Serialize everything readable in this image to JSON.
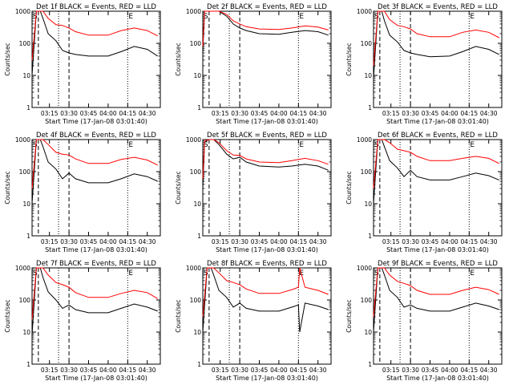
{
  "chart_data": [
    {
      "type": "line",
      "title": "Det 1f BLACK = Events, RED = LLD",
      "xlabel": "Start Time (17-Jan-08 03:01:40)",
      "ylabel": "Counts/sec",
      "x_ticks": [
        "03:15",
        "03:30",
        "03:45",
        "04:00",
        "04:15",
        "04:30"
      ],
      "y_ticks": [
        "1",
        "10",
        "100",
        "1000"
      ],
      "ylim": [
        1,
        1000
      ],
      "yscale": "log",
      "markers": {
        "S": "03:01:40",
        "E": "04:15"
      },
      "series": [
        {
          "color": "#000000",
          "x": [
            "03:01:40",
            "03:05",
            "03:08",
            "03:10",
            "03:14",
            "03:20",
            "03:25",
            "03:30",
            "03:35",
            "03:45",
            "04:00",
            "04:10",
            "04:20",
            "04:30",
            "04:38"
          ],
          "y": [
            10,
            1000,
            1000,
            600,
            200,
            120,
            60,
            50,
            45,
            40,
            40,
            55,
            80,
            65,
            40
          ]
        },
        {
          "color": "#ff0000",
          "x": [
            "03:01:40",
            "03:05",
            "03:08",
            "03:10",
            "03:14",
            "03:20",
            "03:25",
            "03:30",
            "03:35",
            "03:45",
            "04:00",
            "04:10",
            "04:20",
            "04:30",
            "04:38"
          ],
          "y": [
            30,
            1000,
            1000,
            1000,
            600,
            380,
            360,
            300,
            230,
            180,
            180,
            250,
            300,
            250,
            170
          ]
        }
      ]
    },
    {
      "type": "line",
      "title": "Det 2f BLACK = Events, RED = LLD",
      "xlabel": "Start Time (17-Jan-08 03:01:40)",
      "ylabel": "Counts/sec",
      "x_ticks": [
        "03:15",
        "03:30",
        "03:45",
        "04:00",
        "04:15",
        "04:30"
      ],
      "y_ticks": [
        "1",
        "10",
        "100",
        "1000"
      ],
      "ylim": [
        1,
        1000
      ],
      "yscale": "log",
      "markers": {
        "S": "03:01:40",
        "E": "04:15"
      },
      "series": [
        {
          "color": "#000000",
          "x": [
            "03:01:40",
            "03:03",
            "03:06",
            "03:10",
            "03:14",
            "03:20",
            "03:25",
            "03:30",
            "03:35",
            "03:45",
            "04:00",
            "04:10",
            "04:20",
            "04:30",
            "04:38"
          ],
          "y": [
            50,
            1000,
            1000,
            1000,
            1000,
            700,
            400,
            300,
            250,
            200,
            190,
            220,
            250,
            230,
            180
          ]
        },
        {
          "color": "#ff0000",
          "x": [
            "03:01:40",
            "03:03",
            "03:06",
            "03:10",
            "03:14",
            "03:20",
            "03:25",
            "03:30",
            "03:35",
            "03:45",
            "04:00",
            "04:10",
            "04:20",
            "04:30",
            "04:38"
          ],
          "y": [
            80,
            1000,
            1000,
            1000,
            1000,
            800,
            500,
            400,
            330,
            280,
            270,
            300,
            350,
            320,
            260
          ]
        }
      ]
    },
    {
      "type": "line",
      "title": "Det 3f BLACK = Events, RED = LLD",
      "xlabel": "Start Time (17-Jan-08 03:01:40)",
      "ylabel": "Counts/sec",
      "x_ticks": [
        "03:15",
        "03:30",
        "03:45",
        "04:00",
        "04:15",
        "04:30"
      ],
      "y_ticks": [
        "1",
        "10",
        "100",
        "1000"
      ],
      "ylim": [
        1,
        1000
      ],
      "yscale": "log",
      "markers": {
        "S": "03:01:40",
        "E": "04:15"
      },
      "series": [
        {
          "color": "#000000",
          "x": [
            "03:01:40",
            "03:05",
            "03:08",
            "03:10",
            "03:14",
            "03:20",
            "03:25",
            "03:30",
            "03:35",
            "03:45",
            "04:00",
            "04:10",
            "04:20",
            "04:30",
            "04:38"
          ],
          "y": [
            8,
            1000,
            1000,
            500,
            180,
            110,
            60,
            50,
            45,
            38,
            40,
            55,
            80,
            65,
            45
          ]
        },
        {
          "color": "#ff0000",
          "x": [
            "03:01:40",
            "03:05",
            "03:08",
            "03:10",
            "03:14",
            "03:20",
            "03:25",
            "03:30",
            "03:35",
            "03:45",
            "04:00",
            "04:10",
            "04:20",
            "04:30",
            "04:38"
          ],
          "y": [
            20,
            1000,
            1000,
            1000,
            550,
            360,
            330,
            280,
            200,
            160,
            160,
            220,
            260,
            220,
            150
          ]
        }
      ]
    },
    {
      "type": "line",
      "title": "Det 4f BLACK = Events, RED = LLD",
      "xlabel": "Start Time (17-Jan-08 03:01:40)",
      "ylabel": "Counts/sec",
      "x_ticks": [
        "03:15",
        "03:30",
        "03:45",
        "04:00",
        "04:15",
        "04:30"
      ],
      "y_ticks": [
        "1",
        "10",
        "100",
        "1000"
      ],
      "ylim": [
        1,
        1000
      ],
      "yscale": "log",
      "markers": {
        "S": "03:01:40",
        "E": "04:15"
      },
      "series": [
        {
          "color": "#000000",
          "x": [
            "03:01:40",
            "03:05",
            "03:08",
            "03:10",
            "03:14",
            "03:20",
            "03:25",
            "03:30",
            "03:35",
            "03:45",
            "04:00",
            "04:10",
            "04:20",
            "04:30",
            "04:38"
          ],
          "y": [
            10,
            1000,
            1000,
            600,
            200,
            120,
            60,
            90,
            60,
            45,
            45,
            60,
            85,
            70,
            50
          ]
        },
        {
          "color": "#ff0000",
          "x": [
            "03:01:40",
            "03:05",
            "03:08",
            "03:10",
            "03:14",
            "03:20",
            "03:25",
            "03:30",
            "03:35",
            "03:45",
            "04:00",
            "04:10",
            "04:20",
            "04:30",
            "04:38"
          ],
          "y": [
            30,
            1000,
            1000,
            1000,
            700,
            400,
            350,
            330,
            250,
            180,
            180,
            240,
            280,
            230,
            160
          ]
        }
      ]
    },
    {
      "type": "line",
      "title": "Det 5f BLACK = Events, RED = LLD",
      "xlabel": "Start Time (17-Jan-08 03:01:40)",
      "ylabel": "Counts/sec",
      "x_ticks": [
        "03:15",
        "03:30",
        "03:45",
        "04:00",
        "04:15",
        "04:30"
      ],
      "y_ticks": [
        "1",
        "10",
        "100",
        "1000"
      ],
      "ylim": [
        1,
        1000
      ],
      "yscale": "log",
      "markers": {
        "S": "03:01:40",
        "E": "04:15"
      },
      "series": [
        {
          "color": "#000000",
          "x": [
            "03:01:40",
            "03:03",
            "03:06",
            "03:10",
            "03:14",
            "03:20",
            "03:25",
            "03:30",
            "03:35",
            "03:45",
            "04:00",
            "04:10",
            "04:20",
            "04:30",
            "04:38"
          ],
          "y": [
            30,
            800,
            1000,
            1000,
            700,
            350,
            250,
            280,
            200,
            150,
            140,
            150,
            170,
            150,
            110
          ]
        },
        {
          "color": "#ff0000",
          "x": [
            "03:01:40",
            "03:03",
            "03:06",
            "03:10",
            "03:14",
            "03:20",
            "03:25",
            "03:30",
            "03:35",
            "03:45",
            "04:00",
            "04:10",
            "04:20",
            "04:30",
            "04:38"
          ],
          "y": [
            60,
            900,
            1000,
            1000,
            800,
            450,
            330,
            320,
            250,
            200,
            190,
            220,
            260,
            220,
            170
          ]
        }
      ]
    },
    {
      "type": "line",
      "title": "Det 6f BLACK = Events, RED = LLD",
      "xlabel": "Start Time (17-Jan-08 03:01:40)",
      "ylabel": "Counts/sec",
      "x_ticks": [
        "03:15",
        "03:30",
        "03:45",
        "04:00",
        "04:15",
        "04:30"
      ],
      "y_ticks": [
        "1",
        "10",
        "100",
        "1000"
      ],
      "ylim": [
        1,
        1000
      ],
      "yscale": "log",
      "markers": {
        "S": "03:01:40",
        "E": "04:15"
      },
      "series": [
        {
          "color": "#000000",
          "x": [
            "03:01:40",
            "03:05",
            "03:08",
            "03:10",
            "03:14",
            "03:20",
            "03:25",
            "03:30",
            "03:35",
            "03:45",
            "04:00",
            "04:10",
            "04:20",
            "04:30",
            "04:38"
          ],
          "y": [
            10,
            1000,
            1000,
            600,
            220,
            130,
            70,
            110,
            70,
            55,
            55,
            70,
            90,
            75,
            55
          ]
        },
        {
          "color": "#ff0000",
          "x": [
            "03:01:40",
            "03:05",
            "03:08",
            "03:10",
            "03:14",
            "03:20",
            "03:25",
            "03:30",
            "03:35",
            "03:45",
            "04:00",
            "04:10",
            "04:20",
            "04:30",
            "04:38"
          ],
          "y": [
            30,
            1000,
            1000,
            1000,
            800,
            500,
            450,
            400,
            300,
            220,
            220,
            260,
            300,
            260,
            180
          ]
        }
      ]
    },
    {
      "type": "line",
      "title": "Det 7f BLACK = Events, RED = LLD",
      "xlabel": "Start Time (17-Jan-08 03:01:40)",
      "ylabel": "Counts/sec",
      "x_ticks": [
        "03:15",
        "03:30",
        "03:45",
        "04:00",
        "04:15",
        "04:30"
      ],
      "y_ticks": [
        "1",
        "10",
        "100",
        "1000"
      ],
      "ylim": [
        1,
        1000
      ],
      "yscale": "log",
      "markers": {
        "S": "03:01:40",
        "E": "04:15"
      },
      "series": [
        {
          "color": "#000000",
          "x": [
            "03:01:40",
            "03:05",
            "03:08",
            "03:10",
            "03:14",
            "03:20",
            "03:25",
            "03:30",
            "03:35",
            "03:45",
            "04:00",
            "04:10",
            "04:20",
            "04:30",
            "04:38"
          ],
          "y": [
            8,
            1000,
            1000,
            500,
            180,
            100,
            55,
            70,
            50,
            40,
            40,
            55,
            75,
            60,
            45
          ]
        },
        {
          "color": "#ff0000",
          "x": [
            "03:01:40",
            "03:05",
            "03:08",
            "03:10",
            "03:14",
            "03:20",
            "03:25",
            "03:30",
            "03:35",
            "03:45",
            "04:00",
            "04:10",
            "04:20",
            "04:30",
            "04:38"
          ],
          "y": [
            25,
            1000,
            1000,
            1000,
            600,
            350,
            300,
            250,
            170,
            120,
            120,
            160,
            200,
            170,
            110
          ]
        }
      ]
    },
    {
      "type": "line",
      "title": "Det 8f BLACK = Events, RED = LLD",
      "xlabel": "Start Time (17-Jan-08 03:01:40)",
      "ylabel": "Counts/sec",
      "x_ticks": [
        "03:15",
        "03:30",
        "03:45",
        "04:00",
        "04:15",
        "04:30"
      ],
      "y_ticks": [
        "1",
        "10",
        "100",
        "1000"
      ],
      "ylim": [
        1,
        1000
      ],
      "yscale": "log",
      "markers": {
        "S": "03:01:40",
        "E": "04:15"
      },
      "series": [
        {
          "color": "#000000",
          "x": [
            "03:01:40",
            "03:05",
            "03:08",
            "03:10",
            "03:14",
            "03:20",
            "03:25",
            "03:30",
            "03:35",
            "03:45",
            "04:00",
            "04:10",
            "04:15",
            "04:16",
            "04:20",
            "04:30",
            "04:38"
          ],
          "y": [
            10,
            1000,
            1000,
            600,
            200,
            120,
            60,
            80,
            55,
            45,
            45,
            60,
            70,
            10,
            80,
            65,
            50
          ]
        },
        {
          "color": "#ff0000",
          "x": [
            "03:01:40",
            "03:05",
            "03:08",
            "03:10",
            "03:14",
            "03:20",
            "03:25",
            "03:30",
            "03:35",
            "03:45",
            "04:00",
            "04:10",
            "04:15",
            "04:16",
            "04:20",
            "04:30",
            "04:38"
          ],
          "y": [
            30,
            1000,
            1000,
            1000,
            700,
            400,
            350,
            300,
            220,
            160,
            160,
            210,
            250,
            1000,
            250,
            200,
            150
          ]
        }
      ]
    },
    {
      "type": "line",
      "title": "Det 9f BLACK = Events, RED = LLD",
      "xlabel": "Start Time (17-Jan-08 03:01:40)",
      "ylabel": "Counts/sec",
      "x_ticks": [
        "03:15",
        "03:30",
        "03:45",
        "04:00",
        "04:15",
        "04:30"
      ],
      "y_ticks": [
        "1",
        "10",
        "100",
        "1000"
      ],
      "ylim": [
        1,
        1000
      ],
      "yscale": "log",
      "markers": {
        "S": "03:01:40",
        "E": "04:15"
      },
      "series": [
        {
          "color": "#000000",
          "x": [
            "03:01:40",
            "03:05",
            "03:08",
            "03:10",
            "03:14",
            "03:20",
            "03:25",
            "03:30",
            "03:35",
            "03:45",
            "04:00",
            "04:10",
            "04:20",
            "04:30",
            "04:38"
          ],
          "y": [
            10,
            1000,
            1000,
            600,
            200,
            120,
            60,
            70,
            55,
            45,
            45,
            60,
            80,
            65,
            50
          ]
        },
        {
          "color": "#ff0000",
          "x": [
            "03:01:40",
            "03:05",
            "03:08",
            "03:10",
            "03:14",
            "03:20",
            "03:25",
            "03:30",
            "03:35",
            "03:45",
            "04:00",
            "04:10",
            "04:20",
            "04:30",
            "04:38"
          ],
          "y": [
            30,
            1000,
            1000,
            1000,
            600,
            380,
            330,
            280,
            200,
            150,
            150,
            200,
            250,
            210,
            150
          ]
        }
      ]
    }
  ]
}
